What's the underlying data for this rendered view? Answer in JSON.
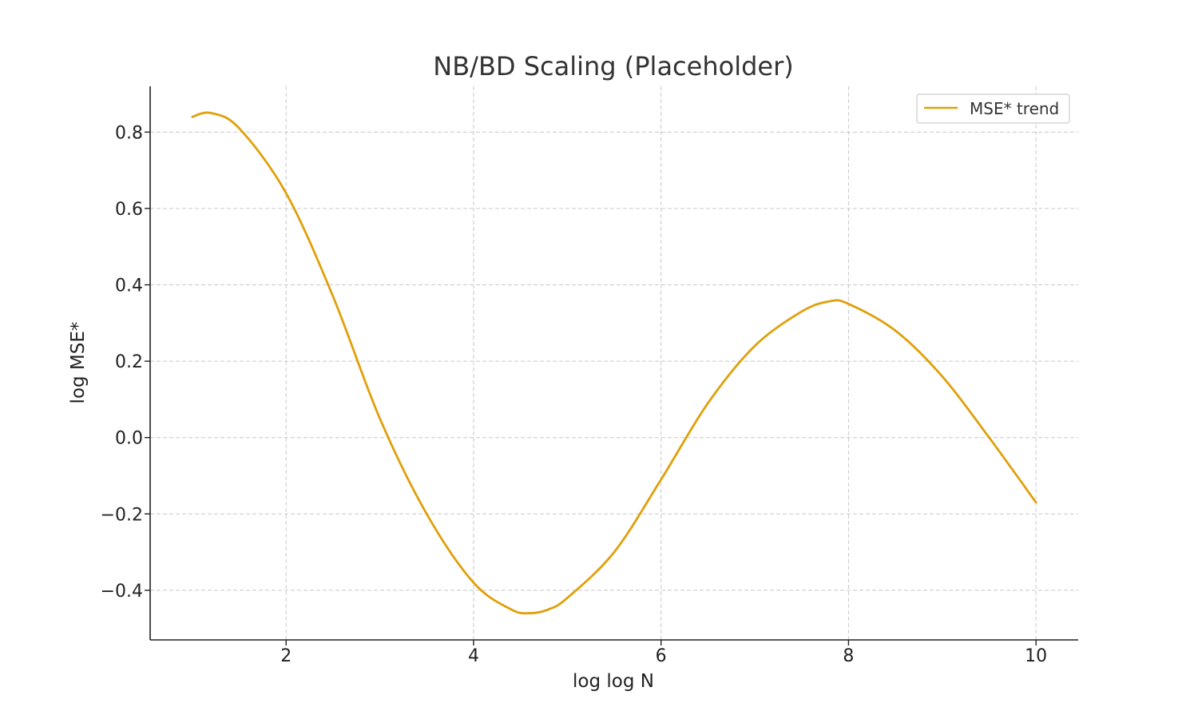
{
  "chart_data": {
    "type": "line",
    "title": "NB/BD Scaling (Placeholder)",
    "xlabel": "log log N",
    "ylabel": "log MSE*",
    "xlim": [
      0.55,
      10.45
    ],
    "ylim": [
      -0.53,
      0.92
    ],
    "xticks": [
      2,
      4,
      6,
      8,
      10
    ],
    "xtick_labels": [
      "2",
      "4",
      "6",
      "8",
      "10"
    ],
    "yticks": [
      -0.4,
      -0.2,
      0.0,
      0.2,
      0.4,
      0.6,
      0.8
    ],
    "ytick_labels": [
      "−0.4",
      "−0.2",
      "0.0",
      "0.2",
      "0.4",
      "0.6",
      "0.8"
    ],
    "grid": true,
    "legend_position": "upper right",
    "series": [
      {
        "name": "MSE* trend",
        "color": "#e0a00a",
        "x": [
          1.0,
          1.2,
          1.5,
          2.0,
          2.5,
          3.0,
          3.5,
          4.0,
          4.4,
          4.6,
          4.8,
          5.0,
          5.5,
          6.0,
          6.5,
          7.0,
          7.5,
          7.8,
          8.0,
          8.5,
          9.0,
          9.5,
          10.0
        ],
        "y": [
          0.84,
          0.85,
          0.81,
          0.64,
          0.37,
          0.05,
          -0.2,
          -0.38,
          -0.45,
          -0.46,
          -0.45,
          -0.42,
          -0.3,
          -0.11,
          0.09,
          0.24,
          0.33,
          0.357,
          0.35,
          0.28,
          0.16,
          0.0,
          -0.17
        ]
      }
    ]
  }
}
